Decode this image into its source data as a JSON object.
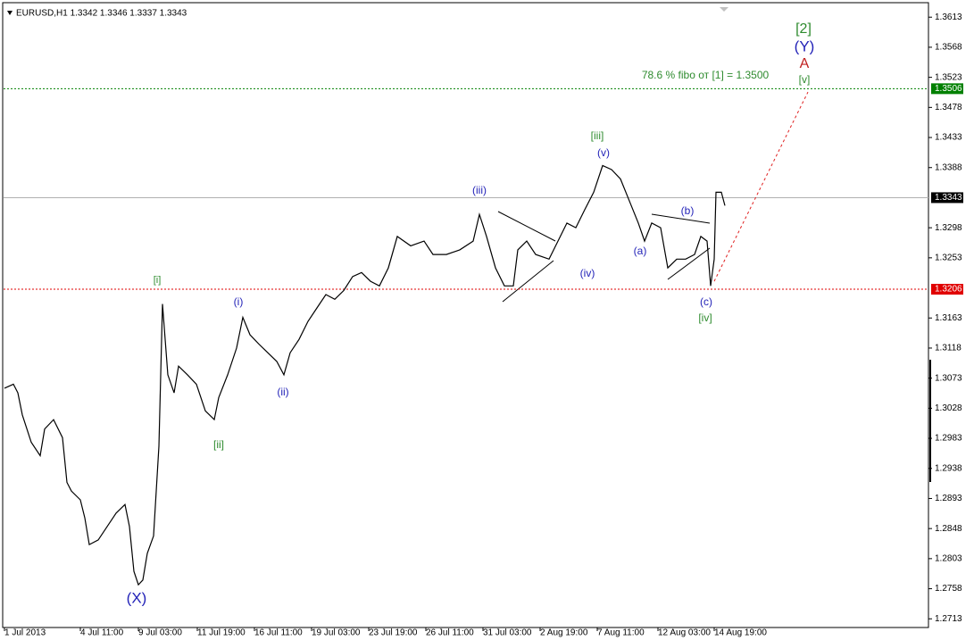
{
  "chart_data": {
    "type": "line",
    "title": "EURUSD,H1  1.3342 1.3346 1.3337 1.3343",
    "xlim": [
      0,
      1040
    ],
    "ylim": [
      1.27,
      1.3632
    ],
    "xticks": [
      {
        "value": 5,
        "label": "1 Jul 2013"
      },
      {
        "value": 90,
        "label": "4 Jul 11:00"
      },
      {
        "value": 155,
        "label": "9 Jul 03:00"
      },
      {
        "value": 221,
        "label": "11 Jul 19:00"
      },
      {
        "value": 285,
        "label": "16 Jul 11:00"
      },
      {
        "value": 349,
        "label": "19 Jul 03:00"
      },
      {
        "value": 413,
        "label": "23 Jul 19:00"
      },
      {
        "value": 477,
        "label": "26 Jul 11:00"
      },
      {
        "value": 541,
        "label": "31 Jul 03:00"
      },
      {
        "value": 605,
        "label": "2 Aug 19:00"
      },
      {
        "value": 669,
        "label": "7 Aug 11:00"
      },
      {
        "value": 737,
        "label": "12 Aug 03:00"
      },
      {
        "value": 800,
        "label": "14 Aug 19:00"
      }
    ],
    "yticks": [
      1.3613,
      1.3568,
      1.3523,
      1.3478,
      1.3433,
      1.3388,
      1.3298,
      1.3253,
      1.3163,
      1.3118,
      1.3073,
      1.3028,
      1.2983,
      1.2938,
      1.2893,
      1.2848,
      1.2803,
      1.2758,
      1.2713
    ],
    "series": [
      {
        "color": "#000000",
        "x": [
          5,
          15,
          20,
          25,
          35,
          45,
          50,
          60,
          70,
          75,
          80,
          90,
          95,
          100,
          110,
          120,
          130,
          140,
          145,
          150,
          155,
          160,
          165,
          172,
          178,
          182,
          188,
          195,
          200,
          210,
          220,
          230,
          240,
          245,
          255,
          265,
          272,
          280,
          290,
          300,
          310,
          318,
          325,
          335,
          345,
          355,
          365,
          375,
          385,
          395,
          405,
          415,
          425,
          435,
          445,
          460,
          475,
          485,
          500,
          515,
          530,
          537,
          545,
          555,
          565,
          575,
          580,
          590,
          600,
          615,
          625,
          635,
          645,
          655,
          665,
          675,
          685,
          695,
          705,
          715,
          722,
          730,
          740,
          748,
          758,
          768,
          778,
          785,
          792,
          796,
          800,
          802,
          808,
          812
        ],
        "values": [
          1.3058,
          1.3064,
          1.3051,
          1.3018,
          1.2977,
          1.2957,
          1.2997,
          1.3011,
          1.2984,
          1.2917,
          1.2904,
          1.2891,
          1.2864,
          1.2824,
          1.2831,
          1.2851,
          1.2871,
          1.2884,
          1.2851,
          1.2784,
          1.2764,
          1.2771,
          1.2811,
          1.2837,
          1.2971,
          1.3184,
          1.3078,
          1.3051,
          1.3091,
          1.3078,
          1.3064,
          1.3024,
          1.3011,
          1.3044,
          1.3078,
          1.3118,
          1.3164,
          1.3138,
          1.3124,
          1.3111,
          1.3098,
          1.3078,
          1.3111,
          1.3131,
          1.3158,
          1.3178,
          1.3198,
          1.3191,
          1.3204,
          1.3225,
          1.3231,
          1.3218,
          1.3211,
          1.3238,
          1.3285,
          1.3271,
          1.3278,
          1.3258,
          1.3258,
          1.3265,
          1.3278,
          1.3318,
          1.3285,
          1.3238,
          1.3211,
          1.3211,
          1.3265,
          1.3278,
          1.3258,
          1.3251,
          1.3278,
          1.3305,
          1.3298,
          1.3325,
          1.3351,
          1.3391,
          1.3385,
          1.3371,
          1.3338,
          1.3305,
          1.3278,
          1.3305,
          1.3298,
          1.3238,
          1.3251,
          1.3251,
          1.3258,
          1.3285,
          1.3278,
          1.3211,
          1.3251,
          1.3351,
          1.3351,
          1.3331
        ]
      }
    ],
    "forecast": {
      "color": "#e02020",
      "x": [
        800,
        905
      ],
      "values": [
        1.3218,
        1.3501
      ]
    },
    "levels": [
      {
        "value": 1.3506,
        "color": "#008000"
      },
      {
        "value": 1.3343,
        "color": "#000000"
      },
      {
        "value": 1.3206,
        "color": "#e00000"
      }
    ],
    "annotations": [
      {
        "text": "[i]",
        "color": "#2e8b2e"
      },
      {
        "text": "(i)",
        "color": "#2323b8"
      },
      {
        "text": "(ii)",
        "color": "#2323b8"
      },
      {
        "text": "[ii]",
        "color": "#2e8b2e"
      },
      {
        "text": "(iii)",
        "color": "#2323b8"
      },
      {
        "text": "[iii]",
        "color": "#2e8b2e"
      },
      {
        "text": "(v)",
        "color": "#2323b8"
      },
      {
        "text": "(iv)",
        "color": "#2323b8"
      },
      {
        "text": "(a)",
        "color": "#2323b8"
      },
      {
        "text": "(b)",
        "color": "#2323b8"
      },
      {
        "text": "(c)",
        "color": "#2323b8"
      },
      {
        "text": "[iv]",
        "color": "#2e8b2e"
      },
      {
        "text": "(X)",
        "color": "#2323b8"
      },
      {
        "text": "[2]",
        "color": "#2e8b2e"
      },
      {
        "text": "(Y)",
        "color": "#2323b8"
      },
      {
        "text": "A",
        "color": "#c02020"
      },
      {
        "text": "[v]",
        "color": "#2e8b2e"
      },
      {
        "text": "78.6 % fibo от [1] = 1.3500",
        "color": "#2e8b2e"
      }
    ]
  }
}
